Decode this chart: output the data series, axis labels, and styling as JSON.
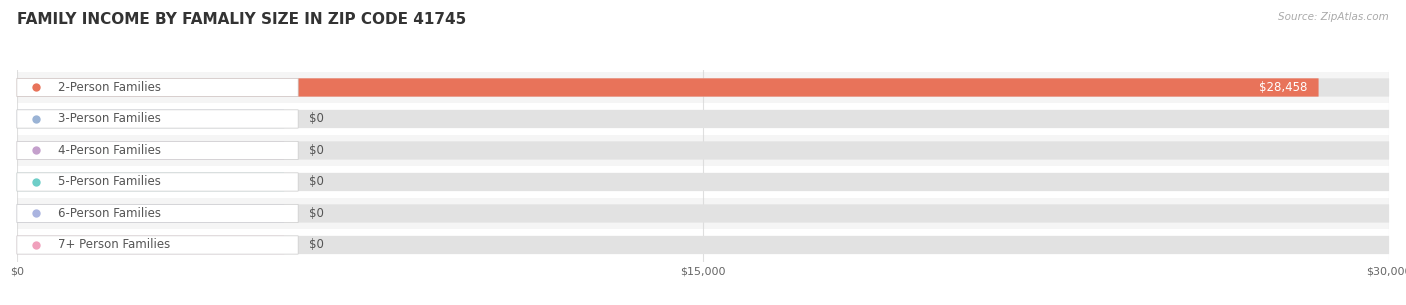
{
  "title": "FAMILY INCOME BY FAMALIY SIZE IN ZIP CODE 41745",
  "source": "Source: ZipAtlas.com",
  "categories": [
    "2-Person Families",
    "3-Person Families",
    "4-Person Families",
    "5-Person Families",
    "6-Person Families",
    "7+ Person Families"
  ],
  "values": [
    28458,
    0,
    0,
    0,
    0,
    0
  ],
  "bar_colors": [
    "#e8735a",
    "#9ab3d5",
    "#c4a0cc",
    "#6ecec8",
    "#aab4e0",
    "#f0a0bc"
  ],
  "xlim": [
    0,
    30000
  ],
  "xticks": [
    0,
    15000,
    30000
  ],
  "xtick_labels": [
    "$0",
    "$15,000",
    "$30,000"
  ],
  "background_color": "#ffffff",
  "title_fontsize": 11,
  "label_fontsize": 8.5,
  "value_label_color_inside": "#ffffff",
  "grid_color": "#d8d8d8",
  "source_color": "#aaaaaa",
  "bar_height": 0.58,
  "label_text_color": "#555555",
  "row_colors": [
    "#f5f5f5",
    "#ffffff",
    "#f5f5f5",
    "#ffffff",
    "#f5f5f5",
    "#ffffff"
  ]
}
